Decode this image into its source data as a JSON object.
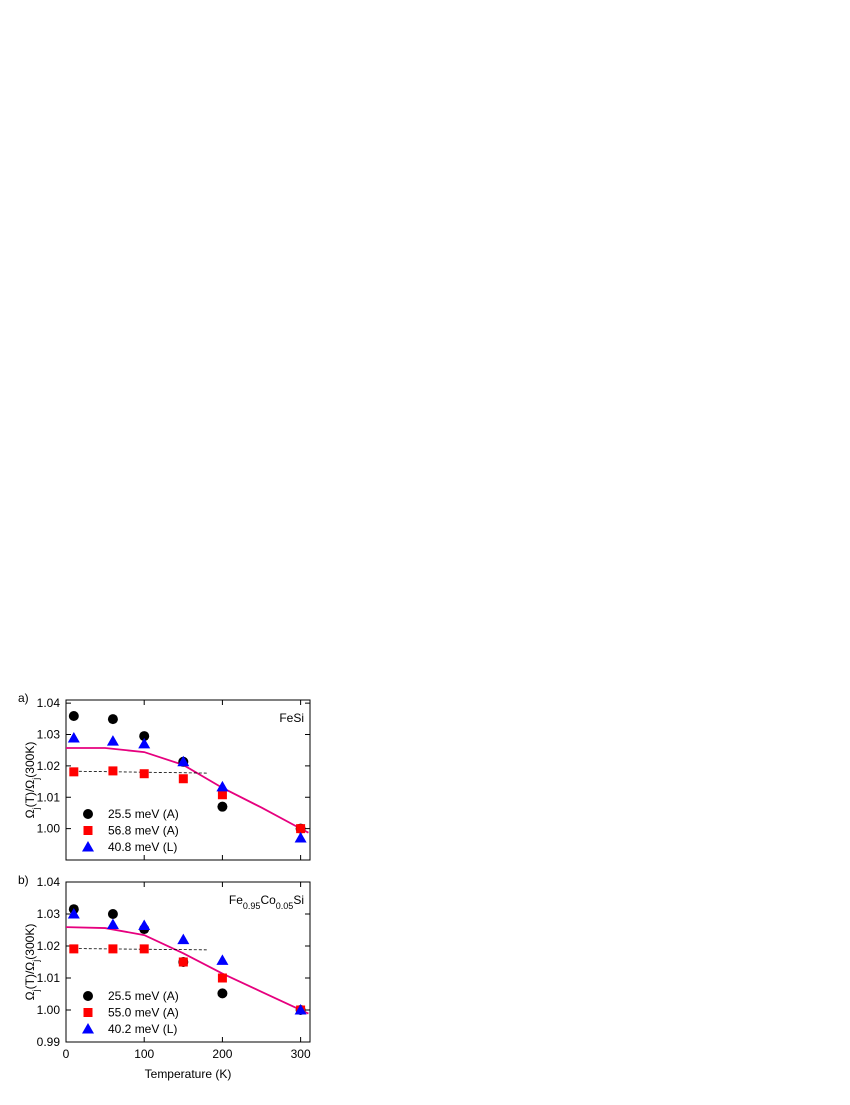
{
  "chart_data": [
    {
      "type": "scatter",
      "panel_label": "a)",
      "annotation": [
        "FeSi"
      ],
      "y_label": [
        "Ω",
        "j",
        "(T)/Ω",
        "j",
        "(300K)"
      ],
      "x": [
        10,
        60,
        100,
        150,
        200,
        300
      ],
      "xlim": [
        0,
        312
      ],
      "xticks": [
        0,
        100,
        200,
        300
      ],
      "show_xtick_labels": false,
      "ylim": [
        0.99,
        1.041
      ],
      "yticks": [
        {
          "value": 1,
          "label": "1.00"
        },
        1.01,
        1.02,
        1.03,
        1.04
      ],
      "series": [
        {
          "name": "25.5 meV (A)",
          "color": "#000000",
          "marker": "circle",
          "values": [
            1.0359,
            1.0349,
            1.0295,
            1.0213,
            1.007,
            1.0
          ]
        },
        {
          "name": "56.8 meV (A)",
          "color": "#ff0000",
          "marker": "square",
          "values": [
            1.0181,
            1.0184,
            1.0175,
            1.0159,
            1.0108,
            1.0
          ]
        },
        {
          "name": "40.8 meV (L)",
          "color": "#0000ff",
          "marker": "triangle",
          "values": [
            1.0289,
            1.0279,
            1.027,
            1.0213,
            1.0133,
            0.997
          ]
        }
      ],
      "lines": [
        {
          "color": "#e6007e",
          "dash": false,
          "x": [
            0,
            50,
            100,
            150,
            200,
            250,
            300,
            310
          ],
          "values": [
            1.0257,
            1.0257,
            1.0244,
            1.0203,
            1.013,
            1.0067,
            1.0,
            0.9987
          ]
        },
        {
          "color": "#000000",
          "dash": true,
          "x": [
            10,
            180
          ],
          "values": [
            1.0183,
            1.0177
          ]
        }
      ]
    },
    {
      "type": "scatter",
      "panel_label": "b)",
      "annotation": [
        "Fe",
        "0.95",
        "Co",
        "0.05",
        "Si"
      ],
      "y_label": [
        "Ω",
        "j",
        "(T)/Ω",
        "j",
        "(300K)"
      ],
      "x_label": "Temperature (K)",
      "x": [
        10,
        60,
        100,
        150,
        200,
        300
      ],
      "xlim": [
        0,
        312
      ],
      "xticks": [
        0,
        100,
        200,
        300
      ],
      "show_xtick_labels": true,
      "ylim": [
        0.99,
        1.04
      ],
      "yticks": [
        0.99,
        {
          "value": 1,
          "label": "1.00"
        },
        1.01,
        1.02,
        1.03,
        1.04
      ],
      "series": [
        {
          "name": "25.5 meV (A)",
          "color": "#000000",
          "marker": "circle",
          "values": [
            1.0315,
            1.03,
            1.0253,
            1.015,
            1.0052,
            1.0
          ]
        },
        {
          "name": "55.0 meV (A)",
          "color": "#ff0000",
          "marker": "square",
          "values": [
            1.0191,
            1.0191,
            1.0191,
            1.015,
            1.01,
            1.0
          ]
        },
        {
          "name": "40.2 meV (L)",
          "color": "#0000ff",
          "marker": "triangle",
          "values": [
            1.03,
            1.0267,
            1.0264,
            1.022,
            1.0155,
            1.0
          ]
        }
      ],
      "lines": [
        {
          "color": "#e6007e",
          "dash": false,
          "x": [
            0,
            50,
            100,
            150,
            200,
            250,
            310
          ],
          "values": [
            1.0259,
            1.0256,
            1.0234,
            1.0177,
            1.0114,
            1.0057,
            0.9989
          ]
        },
        {
          "color": "#000000",
          "dash": true,
          "x": [
            10,
            180
          ],
          "values": [
            1.0192,
            1.0188
          ]
        }
      ]
    }
  ]
}
